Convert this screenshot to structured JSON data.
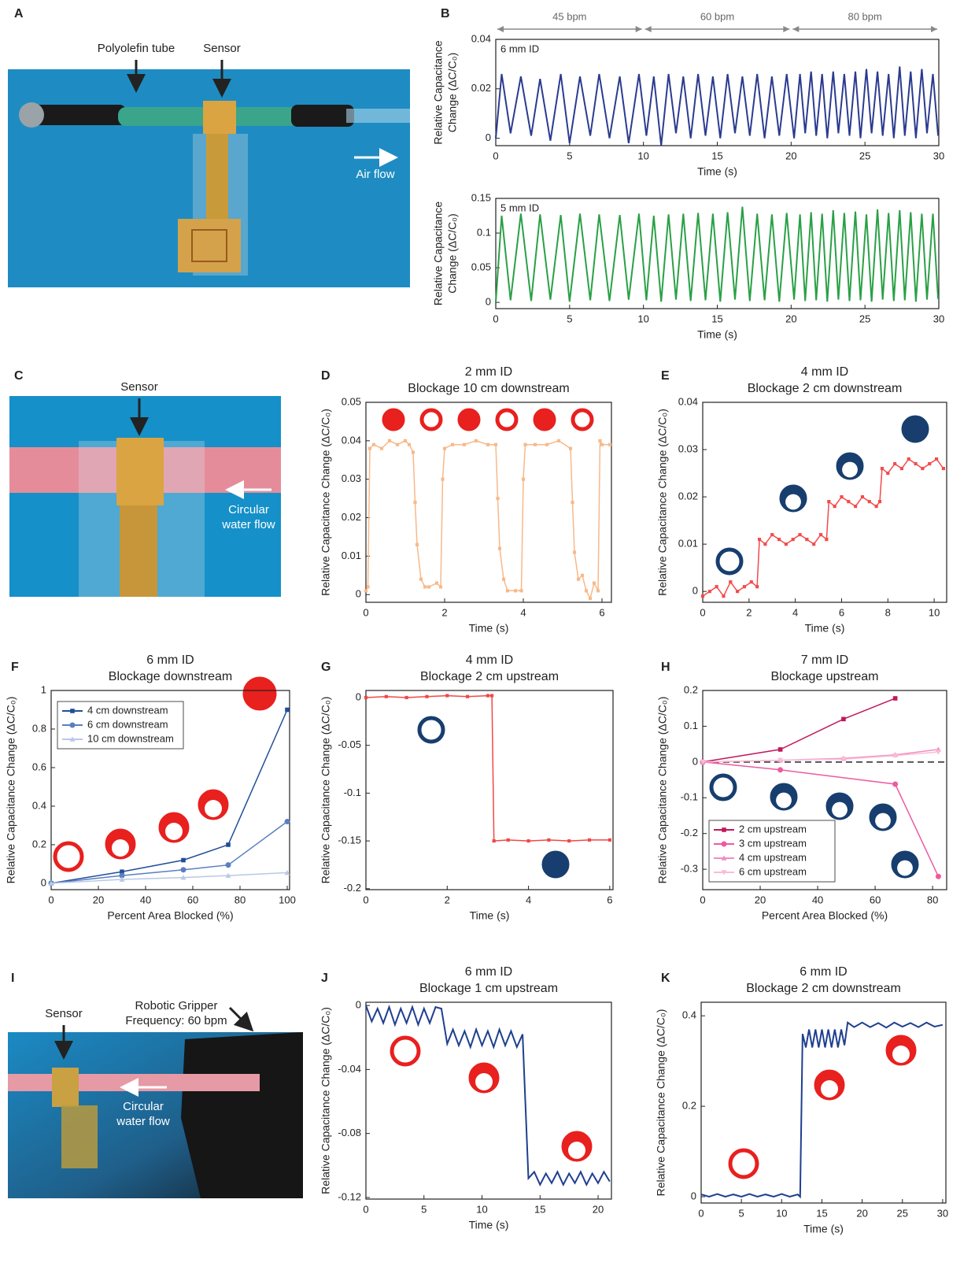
{
  "panel_labels": [
    "A",
    "B",
    "C",
    "D",
    "E",
    "F",
    "G",
    "H",
    "I",
    "J",
    "K"
  ],
  "photos": {
    "A": [
      "Polyolefin tube",
      "Sensor",
      "Air flow"
    ],
    "C": [
      "Sensor",
      "Circular",
      "water flow"
    ],
    "I": [
      "Sensor",
      "Robotic Gripper",
      "Frequency: 60 bpm",
      "Circular",
      "water flow"
    ]
  },
  "chart_data": [
    {
      "type": "line",
      "annotation": "6 mm ID",
      "ylabel": [
        "Relative Capacitance",
        "Change (ΔC/C₀)"
      ],
      "xlabel": "Time (s)",
      "xlim": [
        0,
        30
      ],
      "ylim": [
        -0.003,
        0.04
      ],
      "xticks": [
        0,
        5,
        10,
        15,
        20,
        25,
        30
      ],
      "yticks": [
        0,
        0.02,
        0.04
      ],
      "bpm_segments": [
        {
          "label": "45 bpm",
          "start": 0,
          "end": 10
        },
        {
          "label": "60 bpm",
          "start": 10,
          "end": 20
        },
        {
          "label": "80 bpm",
          "start": 20,
          "end": 30
        }
      ],
      "series": [
        {
          "color": "#2b3b8f",
          "x": [
            0,
            0.4,
            1.0,
            1.7,
            2.4,
            3.0,
            3.7,
            4.4,
            5.0,
            5.7,
            6.4,
            7.0,
            7.7,
            8.4,
            9.0,
            9.7,
            10.2,
            10.7,
            11.2,
            11.7,
            12.2,
            12.7,
            13.2,
            13.7,
            14.2,
            14.7,
            15.2,
            15.7,
            16.2,
            16.7,
            17.2,
            17.7,
            18.2,
            18.7,
            19.2,
            19.7,
            20.2,
            20.6,
            20.95,
            21.35,
            21.7,
            22.1,
            22.45,
            22.85,
            23.2,
            23.6,
            23.95,
            24.35,
            24.7,
            25.1,
            25.45,
            25.85,
            26.2,
            26.6,
            26.95,
            27.35,
            27.7,
            28.1,
            28.45,
            28.85,
            29.2,
            29.6,
            29.95
          ],
          "values": [
            0.0,
            0.026,
            0.002,
            0.025,
            0.001,
            0.024,
            -0.001,
            0.026,
            -0.002,
            0.025,
            0.001,
            0.026,
            0.0,
            0.025,
            -0.002,
            0.026,
            0.001,
            0.025,
            -0.003,
            0.026,
            0.002,
            0.025,
            0.0,
            0.026,
            0.001,
            0.025,
            0.0,
            0.026,
            0.002,
            0.025,
            0.001,
            0.026,
            0.0,
            0.025,
            0.001,
            0.026,
            0.0,
            0.026,
            0.002,
            0.027,
            0.001,
            0.026,
            0.0,
            0.027,
            0.002,
            0.026,
            0.001,
            0.027,
            0.0,
            0.028,
            0.002,
            0.027,
            0.001,
            0.026,
            0.0,
            0.029,
            0.001,
            0.027,
            0.0,
            0.028,
            0.002,
            0.026,
            0.001
          ]
        }
      ]
    },
    {
      "type": "line",
      "annotation": "5 mm ID",
      "ylabel": [
        "Relative Capacitance",
        "Change (ΔC/C₀)"
      ],
      "xlabel": "Time (s)",
      "xlim": [
        0,
        30
      ],
      "ylim": [
        -0.009,
        0.15
      ],
      "xticks": [
        0,
        5,
        10,
        15,
        20,
        25,
        30
      ],
      "yticks": [
        0,
        0.05,
        0.1,
        0.15
      ],
      "series": [
        {
          "color": "#2aa046",
          "x": [
            0,
            0.4,
            1.0,
            1.7,
            2.4,
            3.0,
            3.7,
            4.4,
            5.0,
            5.7,
            6.4,
            7.0,
            7.7,
            8.4,
            9.0,
            9.7,
            10.2,
            10.7,
            11.2,
            11.7,
            12.2,
            12.7,
            13.2,
            13.7,
            14.2,
            14.7,
            15.2,
            15.7,
            16.2,
            16.7,
            17.2,
            17.7,
            18.2,
            18.7,
            19.2,
            19.7,
            20.2,
            20.6,
            20.95,
            21.35,
            21.7,
            22.1,
            22.45,
            22.85,
            23.2,
            23.6,
            23.95,
            24.35,
            24.7,
            25.1,
            25.45,
            25.85,
            26.2,
            26.6,
            26.95,
            27.35,
            27.7,
            28.1,
            28.45,
            28.85,
            29.2,
            29.6,
            29.95
          ],
          "values": [
            0.0,
            0.125,
            0.003,
            0.128,
            0.002,
            0.127,
            0.004,
            0.126,
            0.001,
            0.128,
            0.003,
            0.127,
            0.002,
            0.126,
            0.004,
            0.128,
            0.003,
            0.125,
            0.001,
            0.127,
            0.004,
            0.128,
            0.002,
            0.129,
            0.003,
            0.128,
            0.001,
            0.13,
            0.004,
            0.138,
            0.002,
            0.128,
            0.003,
            0.127,
            0.001,
            0.129,
            0.004,
            0.127,
            0.002,
            0.13,
            0.003,
            0.128,
            0.001,
            0.133,
            0.004,
            0.129,
            0.002,
            0.131,
            0.003,
            0.127,
            0.001,
            0.134,
            0.004,
            0.129,
            0.002,
            0.133,
            0.003,
            0.13,
            0.001,
            0.128,
            0.004,
            0.128,
            0.005
          ]
        }
      ]
    },
    {
      "type": "line",
      "title": "2 mm ID",
      "subtitle": "Blockage 10 cm downstream",
      "ylabel": "Relative Capacitance Change (ΔC/C₀)",
      "xlabel": "Time (s)",
      "xlim": [
        0,
        6.24
      ],
      "ylim": [
        -0.002,
        0.05
      ],
      "xticks": [
        0,
        2,
        4,
        6
      ],
      "yticks": [
        0,
        0.01,
        0.02,
        0.03,
        0.04,
        0.05
      ],
      "series": [
        {
          "color": "#f7b98a",
          "marker": "square",
          "x": [
            0,
            0.05,
            0.1,
            0.2,
            0.4,
            0.6,
            0.8,
            1.0,
            1.1,
            1.2,
            1.25,
            1.3,
            1.4,
            1.5,
            1.6,
            1.8,
            1.9,
            1.95,
            2.0,
            2.2,
            2.5,
            2.8,
            3.1,
            3.3,
            3.35,
            3.4,
            3.5,
            3.6,
            3.8,
            3.95,
            4.0,
            4.05,
            4.3,
            4.6,
            4.9,
            5.2,
            5.25,
            5.3,
            5.4,
            5.5,
            5.6,
            5.7,
            5.8,
            5.9,
            5.95,
            6.0,
            6.2
          ],
          "values": [
            0.001,
            0.002,
            0.038,
            0.039,
            0.038,
            0.04,
            0.039,
            0.04,
            0.039,
            0.037,
            0.024,
            0.013,
            0.004,
            0.002,
            0.002,
            0.003,
            0.002,
            0.03,
            0.038,
            0.039,
            0.039,
            0.04,
            0.039,
            0.039,
            0.025,
            0.012,
            0.004,
            0.001,
            0.001,
            0.001,
            0.03,
            0.039,
            0.039,
            0.039,
            0.04,
            0.038,
            0.024,
            0.011,
            0.004,
            0.005,
            0.001,
            -0.001,
            0.003,
            0.001,
            0.04,
            0.039,
            0.039
          ]
        }
      ]
    },
    {
      "type": "line",
      "title": "4 mm ID",
      "subtitle": "Blockage 2 cm downstream",
      "ylabel": "Relative Capacitance Change (ΔC/C₀)",
      "xlabel": "Time (s)",
      "xlim": [
        0,
        10.54
      ],
      "ylim": [
        -0.0023,
        0.04
      ],
      "xticks": [
        0,
        2,
        4,
        6,
        8,
        10
      ],
      "yticks": [
        0,
        0.01,
        0.02,
        0.03,
        0.04
      ],
      "series": [
        {
          "color": "#f24b4b",
          "marker": "square",
          "x": [
            0,
            0.3,
            0.6,
            0.9,
            1.2,
            1.5,
            1.8,
            2.1,
            2.35,
            2.45,
            2.7,
            3.0,
            3.3,
            3.6,
            3.9,
            4.2,
            4.5,
            4.8,
            5.1,
            5.35,
            5.45,
            5.7,
            6.0,
            6.3,
            6.6,
            6.9,
            7.2,
            7.5,
            7.65,
            7.75,
            8.0,
            8.3,
            8.6,
            8.9,
            9.2,
            9.5,
            9.8,
            10.1,
            10.4
          ],
          "values": [
            -0.001,
            0.0,
            0.001,
            -0.001,
            0.002,
            0.0,
            0.001,
            0.002,
            0.001,
            0.011,
            0.01,
            0.012,
            0.011,
            0.01,
            0.011,
            0.012,
            0.011,
            0.01,
            0.012,
            0.011,
            0.019,
            0.018,
            0.02,
            0.019,
            0.018,
            0.02,
            0.019,
            0.018,
            0.019,
            0.026,
            0.025,
            0.027,
            0.026,
            0.028,
            0.027,
            0.026,
            0.027,
            0.028,
            0.026
          ]
        }
      ]
    },
    {
      "type": "line",
      "title": "6 mm ID",
      "subtitle": "Blockage downstream",
      "ylabel": "Relative Capacitance Change (ΔC/C₀)",
      "xlabel": "Percent Area Blocked (%)",
      "xlim": [
        0,
        101
      ],
      "ylim": [
        -0.033,
        1
      ],
      "xticks": [
        0,
        20,
        40,
        60,
        80,
        100
      ],
      "yticks": [
        0,
        0.2,
        0.4,
        0.6,
        0.8,
        1
      ],
      "legend": "upper left",
      "series": [
        {
          "name": "4 cm downstream",
          "color": "#1f4e99",
          "marker": "square",
          "x": [
            0,
            30,
            56,
            75,
            100
          ],
          "values": [
            0,
            0.06,
            0.12,
            0.2,
            0.9
          ]
        },
        {
          "name": "6 cm downstream",
          "color": "#5b7fc0",
          "marker": "circle",
          "x": [
            0,
            30,
            56,
            75,
            100
          ],
          "values": [
            0,
            0.04,
            0.07,
            0.095,
            0.32
          ]
        },
        {
          "name": "10 cm downstream",
          "color": "#b9c8e8",
          "marker": "triangle",
          "x": [
            0,
            30,
            56,
            75,
            100
          ],
          "values": [
            0,
            0.02,
            0.03,
            0.04,
            0.055
          ]
        }
      ]
    },
    {
      "type": "line",
      "title": "4 mm ID",
      "subtitle": "Blockage 2 cm upstream",
      "ylabel": "Relative Capacitance Change (ΔC/C₀)",
      "xlabel": "Time (s)",
      "xlim": [
        0,
        6.08
      ],
      "ylim": [
        -0.201,
        0.0074
      ],
      "xticks": [
        0,
        2,
        4,
        6
      ],
      "yticks": [
        0,
        -0.05,
        -0.1,
        -0.15,
        -0.2
      ],
      "series": [
        {
          "color": "#f04848",
          "marker": "square",
          "x": [
            0,
            0.5,
            1.0,
            1.5,
            2.0,
            2.5,
            3.0,
            3.1,
            3.15,
            3.5,
            4.0,
            4.5,
            5.0,
            5.5,
            6.0
          ],
          "values": [
            0.0,
            0.001,
            0.0,
            0.001,
            0.002,
            0.001,
            0.002,
            0.002,
            -0.15,
            -0.149,
            -0.15,
            -0.149,
            -0.15,
            -0.149,
            -0.149
          ]
        }
      ]
    },
    {
      "type": "line",
      "title": "7 mm ID",
      "subtitle": "Blockage upstream",
      "ylabel": "Relative Capacitance Change (ΔC/C₀)",
      "xlabel": "Percent Area Blocked (%)",
      "xlim": [
        0,
        84.9
      ],
      "ylim": [
        -0.357,
        0.2
      ],
      "xticks": [
        0,
        20,
        40,
        60,
        80
      ],
      "yticks": [
        0.2,
        0.1,
        0,
        -0.1,
        -0.2,
        -0.3
      ],
      "legend": "lower left",
      "hline": 0,
      "series": [
        {
          "name": "2 cm upstream",
          "color": "#c2185b",
          "marker": "square",
          "x": [
            0,
            27,
            49,
            67
          ],
          "values": [
            0,
            0.035,
            0.12,
            0.178
          ]
        },
        {
          "name": "3 cm upstream",
          "color": "#ee5aa0",
          "marker": "circle",
          "x": [
            0,
            27,
            67,
            82
          ],
          "values": [
            0,
            -0.022,
            -0.062,
            -0.32
          ]
        },
        {
          "name": "4 cm upstream",
          "color": "#f28dbf",
          "marker": "triangle",
          "x": [
            0,
            27,
            49,
            67,
            82
          ],
          "values": [
            0,
            0.005,
            0.01,
            0.02,
            0.035
          ]
        },
        {
          "name": "6 cm upstream",
          "color": "#f9bcd7",
          "marker": "triangle-down",
          "x": [
            0,
            27,
            49,
            67,
            82
          ],
          "values": [
            0,
            0.005,
            0.008,
            0.018,
            0.028
          ]
        }
      ]
    },
    {
      "type": "line",
      "title": "6 mm ID",
      "subtitle": "Blockage 1 cm upstream",
      "ylabel": "Relative Capacitance Change (ΔC/C₀)",
      "xlabel": "Time (s)",
      "xlim": [
        0,
        21.15
      ],
      "ylim": [
        -0.121,
        0.002
      ],
      "xticks": [
        0,
        5,
        10,
        15,
        20
      ],
      "yticks": [
        0,
        -0.04,
        -0.08,
        -0.12
      ],
      "series": [
        {
          "color": "#1f3f8f",
          "x": [
            0,
            0.5,
            1,
            1.5,
            2,
            2.5,
            3,
            3.5,
            4,
            4.5,
            5,
            5.5,
            6,
            6.5,
            7,
            7.5,
            8,
            8.5,
            9,
            9.5,
            10,
            10.5,
            11,
            11.5,
            12,
            12.5,
            13,
            13.5,
            14,
            14.5,
            15,
            15.5,
            16,
            16.5,
            17,
            17.5,
            18,
            18.5,
            19,
            19.5,
            20,
            20.5,
            21
          ],
          "values": [
            0.0,
            -0.01,
            -0.002,
            -0.011,
            -0.001,
            -0.012,
            -0.002,
            -0.011,
            -0.001,
            -0.012,
            -0.002,
            -0.011,
            -0.001,
            -0.002,
            -0.024,
            -0.015,
            -0.025,
            -0.016,
            -0.026,
            -0.015,
            -0.025,
            -0.016,
            -0.026,
            -0.015,
            -0.025,
            -0.016,
            -0.026,
            -0.018,
            -0.108,
            -0.104,
            -0.112,
            -0.105,
            -0.111,
            -0.104,
            -0.112,
            -0.105,
            -0.111,
            -0.104,
            -0.112,
            -0.105,
            -0.111,
            -0.104,
            -0.11
          ]
        }
      ]
    },
    {
      "type": "line",
      "title": "6 mm ID",
      "subtitle": "Blockage 2 cm downstream",
      "ylabel": "Relative Capacitance Change (ΔC/C₀)",
      "xlabel": "Time (s)",
      "xlim": [
        0,
        30.4
      ],
      "ylim": [
        -0.014,
        0.43
      ],
      "xticks": [
        0,
        5,
        10,
        15,
        20,
        25,
        30
      ],
      "yticks": [
        0,
        0.2,
        0.4
      ],
      "series": [
        {
          "color": "#1f3f8f",
          "x": [
            0,
            1,
            2,
            3,
            4,
            5,
            6,
            7,
            8,
            9,
            10,
            11,
            12,
            12.3,
            12.6,
            13.0,
            13.4,
            13.8,
            14.2,
            14.6,
            15.0,
            15.4,
            15.8,
            16.2,
            16.6,
            17.0,
            17.4,
            17.8,
            18.2,
            19,
            20,
            21,
            22,
            23,
            24,
            25,
            26,
            27,
            28,
            29,
            30
          ],
          "values": [
            0.005,
            0.0,
            0.006,
            0.0,
            0.005,
            0.0,
            0.006,
            0.0,
            0.005,
            0.0,
            0.006,
            0.0,
            0.005,
            0.0,
            0.36,
            0.33,
            0.37,
            0.33,
            0.37,
            0.33,
            0.37,
            0.33,
            0.37,
            0.33,
            0.37,
            0.33,
            0.37,
            0.335,
            0.385,
            0.375,
            0.385,
            0.375,
            0.384,
            0.374,
            0.385,
            0.376,
            0.384,
            0.375,
            0.385,
            0.376,
            0.38
          ]
        }
      ]
    }
  ]
}
